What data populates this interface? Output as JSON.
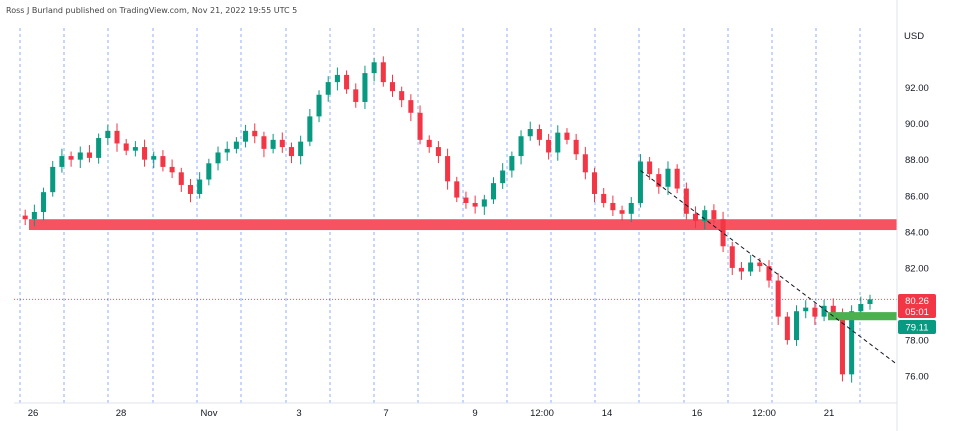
{
  "header": {
    "publisher_line": "Ross J Burland published on TradingView.com, Nov 21, 2022 19:55 UTC 5"
  },
  "chart_data": {
    "type": "candlestick",
    "currency_label": "USD",
    "y_range": [
      74.9,
      95.3
    ],
    "y_ticks": [
      {
        "value": 92,
        "label": "92.00"
      },
      {
        "value": 90,
        "label": "90.00"
      },
      {
        "value": 88,
        "label": "88.00"
      },
      {
        "value": 86,
        "label": "86.00"
      },
      {
        "value": 84,
        "label": "84.00"
      },
      {
        "value": 82,
        "label": "82.00"
      },
      {
        "value": 78,
        "label": "78.00"
      },
      {
        "value": 76,
        "label": "76.00"
      }
    ],
    "x_ticks": [
      "26",
      "28",
      "Nov",
      "3",
      "7",
      "9",
      "12:00",
      "14",
      "16",
      "12:00",
      "21"
    ],
    "price_series": [
      84.9,
      84.7,
      85.1,
      86.2,
      87.6,
      88.2,
      88.0,
      88.4,
      88.1,
      89.2,
      89.6,
      88.9,
      88.5,
      88.7,
      88.0,
      88.2,
      87.6,
      87.3,
      86.6,
      86.1,
      86.9,
      87.8,
      88.4,
      88.6,
      89.0,
      89.6,
      89.3,
      88.6,
      89.1,
      88.7,
      88.2,
      89.0,
      90.4,
      91.6,
      92.3,
      92.7,
      91.9,
      91.2,
      92.8,
      93.4,
      92.3,
      91.8,
      91.3,
      90.6,
      89.1,
      88.7,
      88.2,
      86.8,
      85.9,
      85.6,
      85.4,
      85.8,
      86.7,
      87.4,
      88.2,
      89.3,
      89.7,
      89.1,
      88.4,
      89.5,
      89.1,
      88.3,
      87.3,
      86.1,
      85.6,
      85.2,
      85.0,
      85.6,
      87.9,
      87.2,
      86.5,
      87.5,
      86.4,
      85.0,
      84.6,
      85.2,
      84.7,
      83.2,
      82.0,
      81.8,
      82.3,
      82.1,
      81.3,
      79.3,
      78.0,
      79.6,
      79.8,
      79.3,
      79.9,
      79.5,
      76.1,
      79.6,
      80.0,
      80.26
    ],
    "annotations": {
      "support_zone": {
        "from": 84.1,
        "to": 84.7,
        "color": "#f7525f"
      },
      "demand_zone": {
        "from": 79.1,
        "to": 79.55,
        "color": "#4caf50"
      },
      "trendline_from": {
        "index": 68,
        "price": 87.4
      },
      "trendline_to": {
        "index": 94,
        "price": 77.4
      }
    },
    "last_price": {
      "value": 80.26,
      "label": "80.26",
      "countdown": "05:01",
      "color": "#f23645"
    },
    "marker_price": {
      "value": 79.11,
      "label": "79.11",
      "color": "#089981"
    },
    "up_color": "#089981",
    "down_color": "#f23645"
  }
}
